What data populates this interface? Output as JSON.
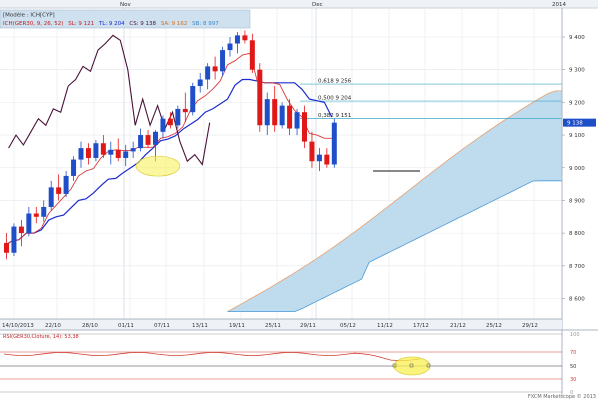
{
  "header": {
    "model_label": "[Modèle : ICH[CYP]",
    "indicator_name": "ICH(GER30, 9, 26, 52)",
    "sl": "SL: 9 121",
    "tl": "TL: 9 204",
    "cs": "CS: 9 138",
    "sa": "SA: 9 162",
    "sb": "SB: 8 997"
  },
  "top_axis": {
    "months": [
      "Nov",
      "Dec"
    ],
    "year": "2014"
  },
  "oscillator": {
    "label": "RSI(GER30,Cloture, 14): 53,38",
    "levels": [
      "100",
      "70",
      "50",
      "30",
      "0"
    ]
  },
  "watermark": "FXCM Marketscope © 2013",
  "colors": {
    "background": "#ffffff",
    "header_bg": "#cfe0ee",
    "bull": "#1e4fc8",
    "bear": "#e01818",
    "tenkan": "#d83a3a",
    "kijun": "#1a2bd0",
    "chikou": "#4a1238",
    "cloud_fill": "#bfdcee",
    "span_a": "#e8a070",
    "span_b": "#4a9ad8",
    "fib": "#3aa8c8",
    "highlight": "#f8f050"
  },
  "chart_data": {
    "type": "candlestick",
    "title": "",
    "instrument": "GER30",
    "xlabel": "",
    "ylabel": "",
    "x_tick_labels": [
      "14/10/2013",
      "22/10",
      "28/10",
      "01/11",
      "07/11",
      "13/11",
      "19/11",
      "25/11",
      "29/11",
      "05/12",
      "11/12",
      "17/12",
      "21/12",
      "25/12",
      "29/12"
    ],
    "y_tick_labels": [
      "9 400",
      "9 300",
      "9 200",
      "9 100",
      "9 000",
      "8 900",
      "8 800",
      "8 700",
      "8 600"
    ],
    "ylim": [
      8555,
      9465
    ],
    "last_price_label": "9 138",
    "candles": [
      {
        "o": 8770,
        "h": 8800,
        "l": 8720,
        "c": 8740
      },
      {
        "o": 8740,
        "h": 8830,
        "l": 8730,
        "c": 8820
      },
      {
        "o": 8820,
        "h": 8840,
        "l": 8760,
        "c": 8800
      },
      {
        "o": 8800,
        "h": 8880,
        "l": 8790,
        "c": 8860
      },
      {
        "o": 8860,
        "h": 8880,
        "l": 8830,
        "c": 8850
      },
      {
        "o": 8850,
        "h": 8900,
        "l": 8835,
        "c": 8880
      },
      {
        "o": 8880,
        "h": 8960,
        "l": 8870,
        "c": 8940
      },
      {
        "o": 8940,
        "h": 8980,
        "l": 8900,
        "c": 8920
      },
      {
        "o": 8920,
        "h": 8990,
        "l": 8910,
        "c": 8975
      },
      {
        "o": 8975,
        "h": 9035,
        "l": 8960,
        "c": 9025
      },
      {
        "o": 9025,
        "h": 9080,
        "l": 9000,
        "c": 9060
      },
      {
        "o": 9060,
        "h": 9075,
        "l": 9010,
        "c": 9030
      },
      {
        "o": 9030,
        "h": 9085,
        "l": 9020,
        "c": 9075
      },
      {
        "o": 9075,
        "h": 9100,
        "l": 9030,
        "c": 9040
      },
      {
        "o": 9040,
        "h": 9080,
        "l": 9010,
        "c": 9055
      },
      {
        "o": 9055,
        "h": 9090,
        "l": 9020,
        "c": 9030
      },
      {
        "o": 9030,
        "h": 9070,
        "l": 9005,
        "c": 9050
      },
      {
        "o": 9050,
        "h": 9080,
        "l": 9030,
        "c": 9060
      },
      {
        "o": 9060,
        "h": 9120,
        "l": 9050,
        "c": 9100
      },
      {
        "o": 9100,
        "h": 9115,
        "l": 9060,
        "c": 9070
      },
      {
        "o": 9070,
        "h": 9115,
        "l": 9020,
        "c": 9110
      },
      {
        "o": 9110,
        "h": 9160,
        "l": 9090,
        "c": 9150
      },
      {
        "o": 9150,
        "h": 9170,
        "l": 9120,
        "c": 9130
      },
      {
        "o": 9130,
        "h": 9190,
        "l": 9120,
        "c": 9180
      },
      {
        "o": 9180,
        "h": 9230,
        "l": 9140,
        "c": 9170
      },
      {
        "o": 9170,
        "h": 9260,
        "l": 9160,
        "c": 9250
      },
      {
        "o": 9250,
        "h": 9290,
        "l": 9230,
        "c": 9270
      },
      {
        "o": 9270,
        "h": 9320,
        "l": 9240,
        "c": 9310
      },
      {
        "o": 9310,
        "h": 9340,
        "l": 9270,
        "c": 9295
      },
      {
        "o": 9295,
        "h": 9370,
        "l": 9280,
        "c": 9360
      },
      {
        "o": 9360,
        "h": 9400,
        "l": 9340,
        "c": 9380
      },
      {
        "o": 9380,
        "h": 9415,
        "l": 9350,
        "c": 9405
      },
      {
        "o": 9405,
        "h": 9420,
        "l": 9380,
        "c": 9390
      },
      {
        "o": 9390,
        "h": 9410,
        "l": 9290,
        "c": 9300
      },
      {
        "o": 9300,
        "h": 9320,
        "l": 9110,
        "c": 9130
      },
      {
        "o": 9130,
        "h": 9230,
        "l": 9100,
        "c": 9210
      },
      {
        "o": 9210,
        "h": 9250,
        "l": 9110,
        "c": 9130
      },
      {
        "o": 9130,
        "h": 9200,
        "l": 9120,
        "c": 9190
      },
      {
        "o": 9190,
        "h": 9210,
        "l": 9100,
        "c": 9120
      },
      {
        "o": 9120,
        "h": 9180,
        "l": 9100,
        "c": 9170
      },
      {
        "o": 9170,
        "h": 9190,
        "l": 9060,
        "c": 9080
      },
      {
        "o": 9080,
        "h": 9110,
        "l": 9000,
        "c": 9020
      },
      {
        "o": 9020,
        "h": 9060,
        "l": 8990,
        "c": 9040
      },
      {
        "o": 9040,
        "h": 9060,
        "l": 9000,
        "c": 9010
      },
      {
        "o": 9010,
        "h": 9150,
        "l": 9000,
        "c": 9138
      }
    ],
    "fibonacci": [
      {
        "label": "0,618 9 256",
        "value": 9256
      },
      {
        "label": "0,500 9 204",
        "value": 9204
      },
      {
        "label": "0,382 9 151",
        "value": 9151
      }
    ],
    "support_level": 8990
  }
}
